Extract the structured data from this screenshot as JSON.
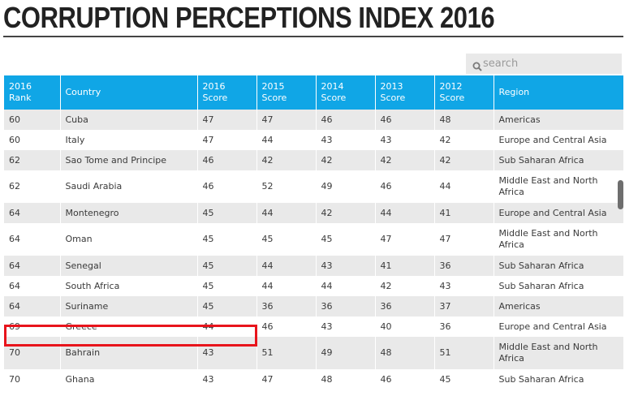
{
  "title": "CORRUPTION PERCEPTIONS INDEX 2016",
  "search": {
    "placeholder": "search",
    "icon": "search-icon"
  },
  "table": {
    "headers": [
      {
        "line1": "2016",
        "line2": "Rank"
      },
      {
        "line1": "Country",
        "line2": ""
      },
      {
        "line1": "2016",
        "line2": "Score"
      },
      {
        "line1": "2015",
        "line2": "Score"
      },
      {
        "line1": "2014",
        "line2": "Score"
      },
      {
        "line1": "2013",
        "line2": "Score"
      },
      {
        "line1": "2012",
        "line2": "Score"
      },
      {
        "line1": "Region",
        "line2": ""
      }
    ],
    "rows": [
      [
        "60",
        "Cuba",
        "47",
        "47",
        "46",
        "46",
        "48",
        "Americas"
      ],
      [
        "60",
        "Italy",
        "47",
        "44",
        "43",
        "43",
        "42",
        "Europe and Central Asia"
      ],
      [
        "62",
        "Sao Tome and Principe",
        "46",
        "42",
        "42",
        "42",
        "42",
        "Sub Saharan Africa"
      ],
      [
        "62",
        "Saudi Arabia",
        "46",
        "52",
        "49",
        "46",
        "44",
        "Middle East and North Africa"
      ],
      [
        "64",
        "Montenegro",
        "45",
        "44",
        "42",
        "44",
        "41",
        "Europe and Central Asia"
      ],
      [
        "64",
        "Oman",
        "45",
        "45",
        "45",
        "47",
        "47",
        "Middle East and North Africa"
      ],
      [
        "64",
        "Senegal",
        "45",
        "44",
        "43",
        "41",
        "36",
        "Sub Saharan Africa"
      ],
      [
        "64",
        "South Africa",
        "45",
        "44",
        "44",
        "42",
        "43",
        "Sub Saharan Africa"
      ],
      [
        "64",
        "Suriname",
        "45",
        "36",
        "36",
        "36",
        "37",
        "Americas"
      ],
      [
        "69",
        "Greece",
        "44",
        "46",
        "43",
        "40",
        "36",
        "Europe and Central Asia"
      ],
      [
        "70",
        "Bahrain",
        "43",
        "51",
        "49",
        "48",
        "51",
        "Middle East and North Africa"
      ],
      [
        "70",
        "Ghana",
        "43",
        "47",
        "48",
        "46",
        "45",
        "Sub Saharan Africa"
      ]
    ],
    "highlighted_country": "Greece",
    "highlight_color": "#e8141c",
    "header_color": "#10a6e6"
  }
}
